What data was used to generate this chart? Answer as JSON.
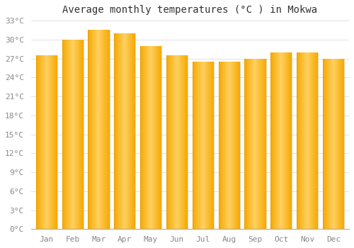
{
  "months": [
    "Jan",
    "Feb",
    "Mar",
    "Apr",
    "May",
    "Jun",
    "Jul",
    "Aug",
    "Sep",
    "Oct",
    "Nov",
    "Dec"
  ],
  "values": [
    27.5,
    30.0,
    31.5,
    31.0,
    29.0,
    27.5,
    26.5,
    26.5,
    27.0,
    28.0,
    28.0,
    27.0
  ],
  "bar_color_edge": "#F5A800",
  "bar_color_center": "#FFD060",
  "title": "Average monthly temperatures (°C ) in Mokwa",
  "ylim": [
    0,
    33
  ],
  "ytick_step": 3,
  "background_color": "#FFFFFF",
  "grid_color": "#E0E0E0",
  "title_fontsize": 10,
  "tick_fontsize": 8,
  "bar_width": 0.82
}
